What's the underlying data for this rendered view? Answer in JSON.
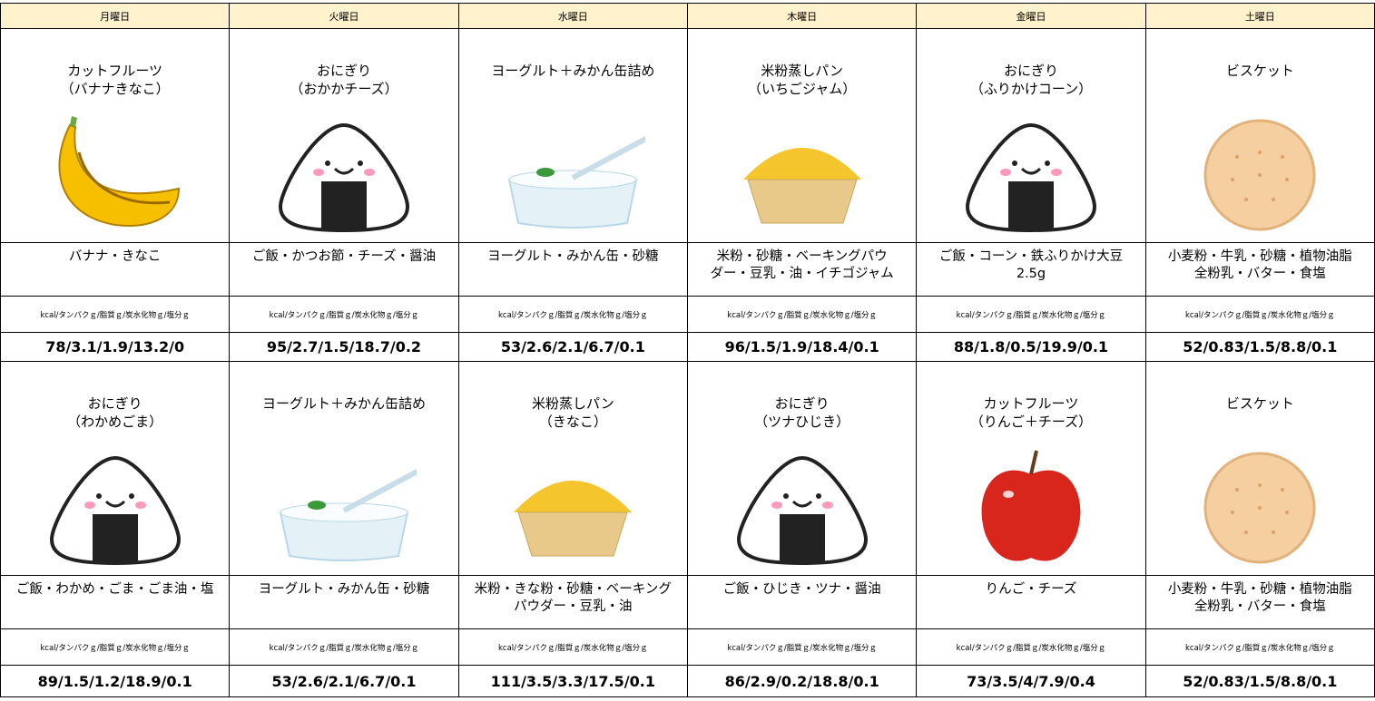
{
  "header": {
    "days": [
      "月曜日",
      "火曜日",
      "水曜日",
      "木曜日",
      "金曜日",
      "土曜日"
    ]
  },
  "weeks": [
    {
      "items": [
        {
          "name": [
            "カットフルーツ",
            "（バナナきなこ）"
          ],
          "ingredients": [
            "バナナ・きなこ"
          ],
          "nutrition_label": "kcal/タンパクｇ/脂質ｇ/炭水化物ｇ/塩分ｇ",
          "nutrition": "78/3.1/1.9/13.2/0"
        },
        {
          "name": [
            "おにぎり",
            "（おかかチーズ）"
          ],
          "ingredients": [
            "ご飯・かつお節・チーズ・醤油"
          ],
          "nutrition_label": "kcal/タンパクｇ/脂質ｇ/炭水化物ｇ/塩分ｇ",
          "nutrition": "95/2.7/1.5/18.7/0.2"
        },
        {
          "name": [
            "ヨーグルト＋みかん缶詰め"
          ],
          "ingredients": [
            "ヨーグルト・みかん缶・砂糖"
          ],
          "nutrition_label": "kcal/タンパクｇ/脂質ｇ/炭水化物ｇ/塩分ｇ",
          "nutrition": "53/2.6/2.1/6.7/0.1"
        },
        {
          "name": [
            "米粉蒸しパン",
            "（いちごジャム）"
          ],
          "ingredients": [
            "米粉・砂糖・ベーキングパウ",
            "ダー・豆乳・油・イチゴジャム"
          ],
          "nutrition_label": "kcal/タンパクｇ/脂質ｇ/炭水化物ｇ/塩分ｇ",
          "nutrition": "96/1.5/1.9/18.4/0.1"
        },
        {
          "name": [
            "おにぎり",
            "（ふりかけコーン）"
          ],
          "ingredients": [
            "ご飯・コーン・鉄ふりかけ大豆",
            "2.5g"
          ],
          "nutrition_label": "kcal/タンパクｇ/脂質ｇ/炭水化物ｇ/塩分ｇ",
          "nutrition": "88/1.8/0.5/19.9/0.1"
        },
        {
          "name": [
            "ビスケット"
          ],
          "ingredients": [
            "小麦粉・牛乳・砂糖・植物油脂",
            "全粉乳・バター・食塩"
          ],
          "nutrition_label": "kcal/タンパクｇ/脂質ｇ/炭水化物ｇ/塩分ｇ",
          "nutrition": "52/0.83/1.5/8.8/0.1"
        }
      ]
    },
    {
      "items": [
        {
          "name": [
            "おにぎり",
            "（わかめごま）"
          ],
          "ingredients": [
            "ご飯・わかめ・ごま・ごま油・塩"
          ],
          "nutrition_label": "kcal/タンパクｇ/脂質ｇ/炭水化物ｇ/塩分ｇ",
          "nutrition": "89/1.5/1.2/18.9/0.1"
        },
        {
          "name": [
            "ヨーグルト＋みかん缶詰め"
          ],
          "ingredients": [
            "ヨーグルト・みかん缶・砂糖"
          ],
          "nutrition_label": "kcal/タンパクｇ/脂質ｇ/炭水化物ｇ/塩分ｇ",
          "nutrition": "53/2.6/2.1/6.7/0.1"
        },
        {
          "name": [
            "米粉蒸しパン",
            "（きなこ）"
          ],
          "ingredients": [
            "米粉・きな粉・砂糖・ベーキング",
            "パウダー・豆乳・油"
          ],
          "nutrition_label": "kcal/タンパクｇ/脂質ｇ/炭水化物ｇ/塩分ｇ",
          "nutrition": "111/3.5/3.3/17.5/0.1"
        },
        {
          "name": [
            "おにぎり",
            "（ツナひじき）"
          ],
          "ingredients": [
            "ご飯・ひじき・ツナ・醤油"
          ],
          "nutrition_label": "kcal/タンパクｇ/脂質ｇ/炭水化物ｇ/塩分ｇ",
          "nutrition": "86/2.9/0.2/18.8/0.1"
        },
        {
          "name": [
            "カットフルーツ",
            "（りんご＋チーズ）"
          ],
          "ingredients": [
            "りんご・チーズ"
          ],
          "nutrition_label": "kcal/タンパクｇ/脂質ｇ/炭水化物ｇ/塩分ｇ",
          "nutrition": "73/3.5/4/7.9/0.4"
        },
        {
          "name": [
            "ビスケット"
          ],
          "ingredients": [
            "小麦粉・牛乳・砂糖・植物油脂",
            "全粉乳・バター・食塩"
          ],
          "nutrition_label": "kcal/タンパクｇ/脂質ｇ/炭水化物ｇ/塩分ｇ",
          "nutrition": "52/0.83/1.5/8.8/0.1"
        }
      ]
    }
  ]
}
